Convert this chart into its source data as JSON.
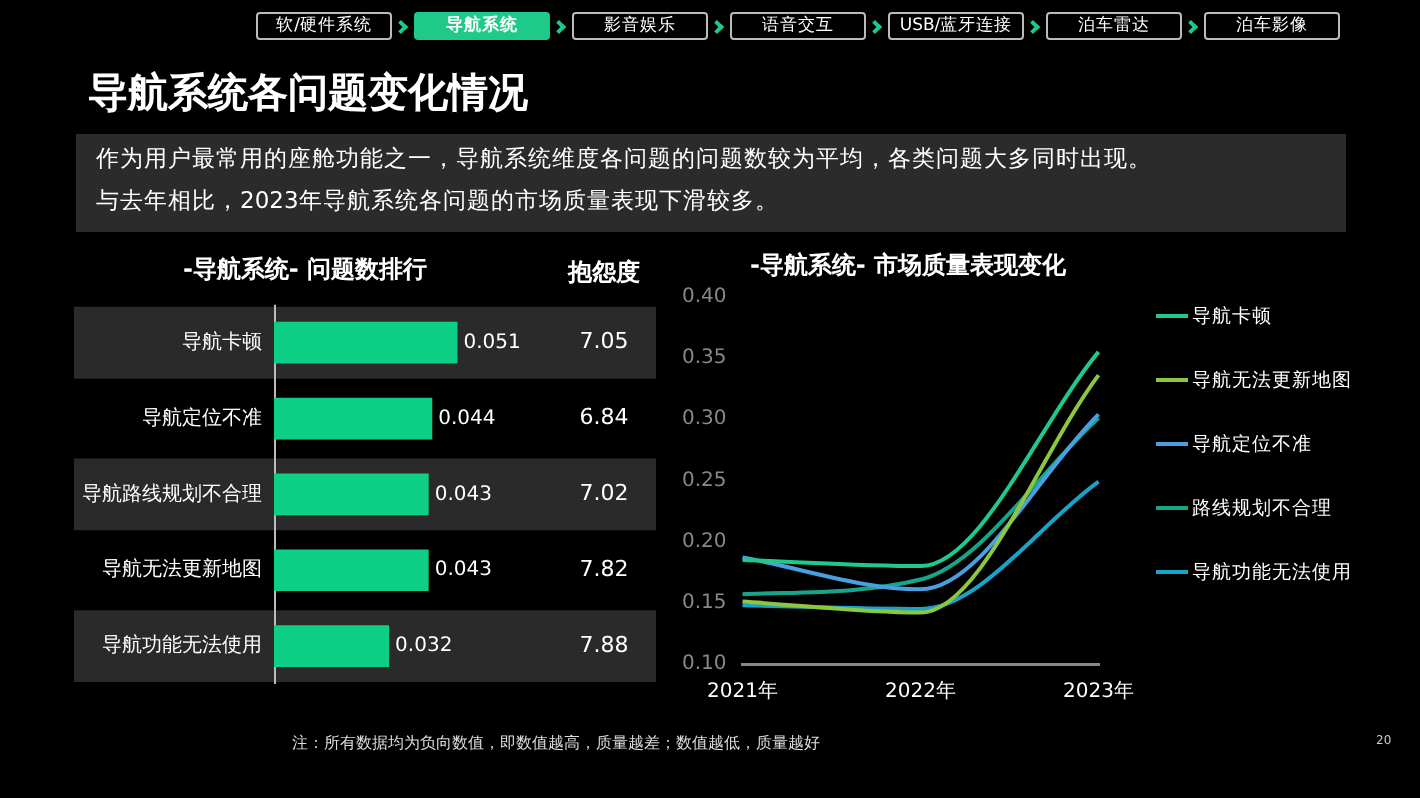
{
  "chart_data": [
    {
      "type": "other",
      "title": "导航系统各问题变化情况",
      "subtitle": "作为用户最常用的座舱功能之一，导航系统维度各问题的问题数较为平均，各类问题大多同时出现。",
      "categories": [
        "软/硬件系统",
        "导航系统",
        "影音娱乐",
        "语音交互",
        "USB/蓝牙连接",
        "泊车雷达",
        "泊车影像"
      ],
      "colors": [
        "#000000",
        "#1ec98a",
        "#000000",
        "#000000",
        "#000000",
        "#000000",
        "#000000"
      ],
      "annotations": [
        "与去年相比，2023年导航系统各问题的市场质量表现下滑较多。",
        "注：所有数据均为负向数值，即数值越高，质量越差；数值越低，质量越好",
        "20"
      ]
    },
    {
      "type": "bar",
      "orientation": "horizontal",
      "title": "-导航系统- 问题数排行",
      "categories": [
        "导航卡顿",
        "导航定位不准",
        "导航路线规划不合理",
        "导航无法更新地图",
        "导航功能无法使用"
      ],
      "values": [
        0.051,
        0.044,
        0.043,
        0.043,
        0.032
      ],
      "color": "#0ecf86",
      "data_labels": true,
      "annotations": [
        "抱怨度",
        "7.05",
        "6.84",
        "7.02",
        "7.82",
        "7.88"
      ]
    },
    {
      "type": "line",
      "title": "-导航系统- 市场质量表现变化",
      "categories": [
        "2021年",
        "2022年",
        "2023年"
      ],
      "series": [
        {
          "name": "导航卡顿",
          "color": "#1ec98a",
          "values": [
            0.185,
            0.18,
            0.355
          ]
        },
        {
          "name": "导航无法更新地图",
          "color": "#8dc63f",
          "values": [
            0.151,
            0.142,
            0.336
          ]
        },
        {
          "name": "导航定位不准",
          "color": "#4a9fe0",
          "values": [
            0.187,
            0.161,
            0.304
          ]
        },
        {
          "name": "路线规划不合理",
          "color": "#16a589",
          "values": [
            0.157,
            0.169,
            0.301
          ]
        },
        {
          "name": "导航功能无法使用",
          "color": "#1aa3c8",
          "values": [
            0.148,
            0.145,
            0.249
          ]
        }
      ],
      "ylim": [
        0.1,
        0.4
      ],
      "yticks": [
        {
          "value": 0.1,
          "label": "0.10"
        },
        {
          "value": 0.15,
          "label": "0.15"
        },
        {
          "value": 0.2,
          "label": "0.20"
        },
        {
          "value": 0.25,
          "label": "0.25"
        },
        {
          "value": 0.3,
          "label": "0.30"
        },
        {
          "value": 0.35,
          "label": "0.35"
        },
        {
          "value": 0.4,
          "label": "0.40"
        }
      ],
      "grid": false,
      "legend": "right",
      "marker": "none",
      "line_style": "solid"
    }
  ]
}
